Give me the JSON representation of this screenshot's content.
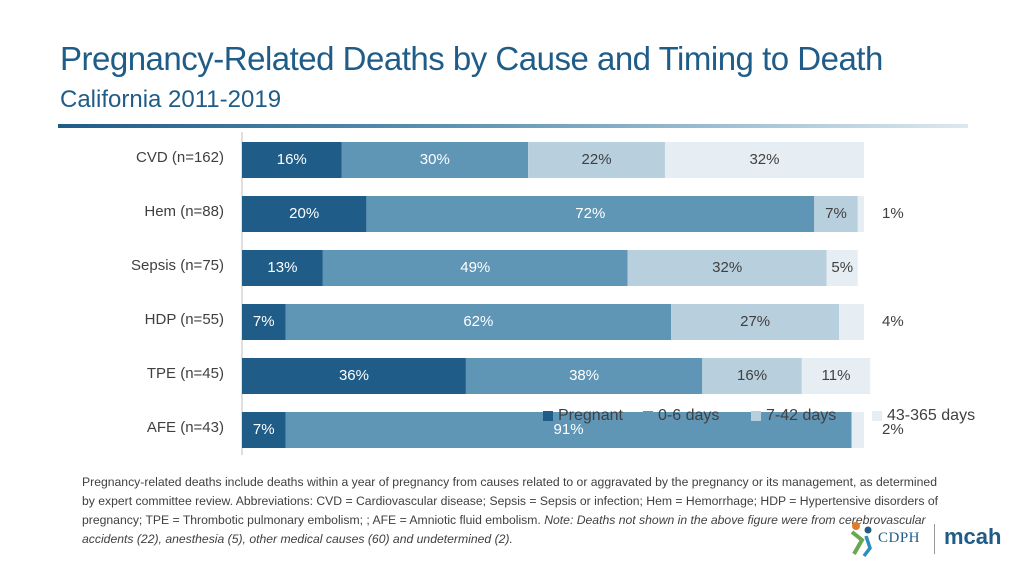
{
  "header": {
    "title": "Pregnancy-Related Deaths by Cause and Timing to Death",
    "subtitle": "California 2011-2019"
  },
  "chart_data": {
    "type": "bar",
    "orientation": "horizontal",
    "stacked": true,
    "categories": [
      "CVD (n=162)",
      "Hem (n=88)",
      "Sepsis (n=75)",
      "HDP (n=55)",
      "TPE (n=45)",
      "AFE (n=43)"
    ],
    "series": [
      {
        "name": "Pregnant",
        "color": "#1f5c88",
        "values": [
          16,
          20,
          13,
          7,
          36,
          7
        ],
        "labels": [
          "16%",
          "20%",
          "13%",
          "7%",
          "36%",
          "7%"
        ]
      },
      {
        "name": "0-6 days",
        "color": "#5f95b5",
        "values": [
          30,
          72,
          49,
          62,
          38,
          91
        ],
        "labels": [
          "30%",
          "72%",
          "49%",
          "62%",
          "38%",
          "91%"
        ]
      },
      {
        "name": "7-42 days",
        "color": "#b8cfdd",
        "values": [
          22,
          7,
          32,
          27,
          16,
          0
        ],
        "labels": [
          "22%",
          "7%",
          "32%",
          "27%",
          "16%",
          ""
        ]
      },
      {
        "name": "43-365 days",
        "color": "#e7eef3",
        "values": [
          32,
          1,
          5,
          4,
          11,
          2
        ],
        "labels": [
          "32%",
          "1%",
          "5%",
          "4%",
          "11%",
          "2%"
        ]
      }
    ],
    "xlim": [
      0,
      100
    ],
    "legend_position": "right"
  },
  "footnote": {
    "text": "Pregnancy-related deaths include deaths within a year of pregnancy from causes related to or aggravated by the pregnancy or its management, as determined by expert committee review. Abbreviations: CVD = Cardiovascular disease; Sepsis = Sepsis or infection; Hem = Hemorrhage; HDP = Hypertensive disorders of pregnancy; TPE = Thrombotic pulmonary embolism; ; AFE = Amniotic fluid embolism.",
    "note": "Note: Deaths not shown in the above figure were from cerebrovascular accidents (22), anesthesia (5), other medical causes (60) and undetermined (2)."
  },
  "logo": {
    "cdph": "CDPH",
    "mcah": "mcah"
  }
}
